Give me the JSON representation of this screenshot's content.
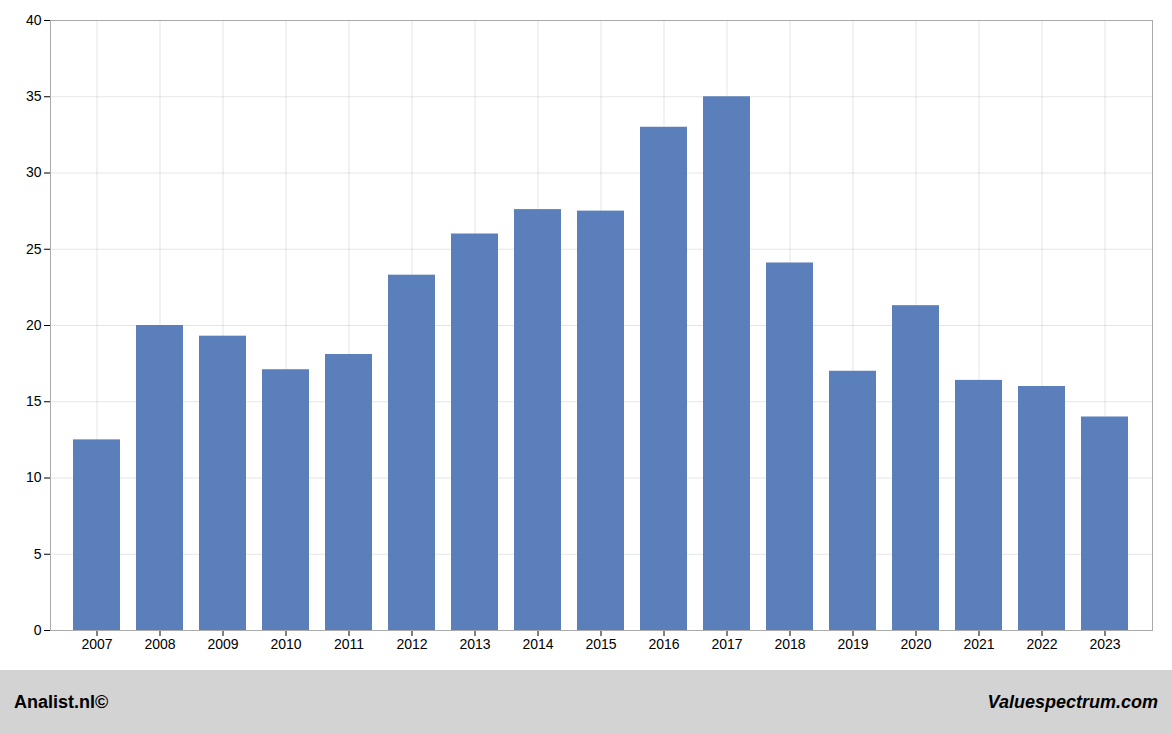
{
  "chart_data": {
    "type": "bar",
    "categories": [
      "2007",
      "2008",
      "2009",
      "2010",
      "2011",
      "2012",
      "2013",
      "2014",
      "2015",
      "2016",
      "2017",
      "2018",
      "2019",
      "2020",
      "2021",
      "2022",
      "2023"
    ],
    "values": [
      12.5,
      20.0,
      19.3,
      17.1,
      18.1,
      23.3,
      26.0,
      27.6,
      27.5,
      33.0,
      35.0,
      24.1,
      17.0,
      21.3,
      16.4,
      16.0,
      14.0
    ],
    "color": "#5b7fbb",
    "ylim": [
      0,
      40
    ],
    "yticks": [
      0,
      5,
      10,
      15,
      20,
      25,
      30,
      35,
      40
    ],
    "grid": true,
    "annotations": [
      "Analist.nl©",
      "Valuespectrum.com"
    ]
  }
}
